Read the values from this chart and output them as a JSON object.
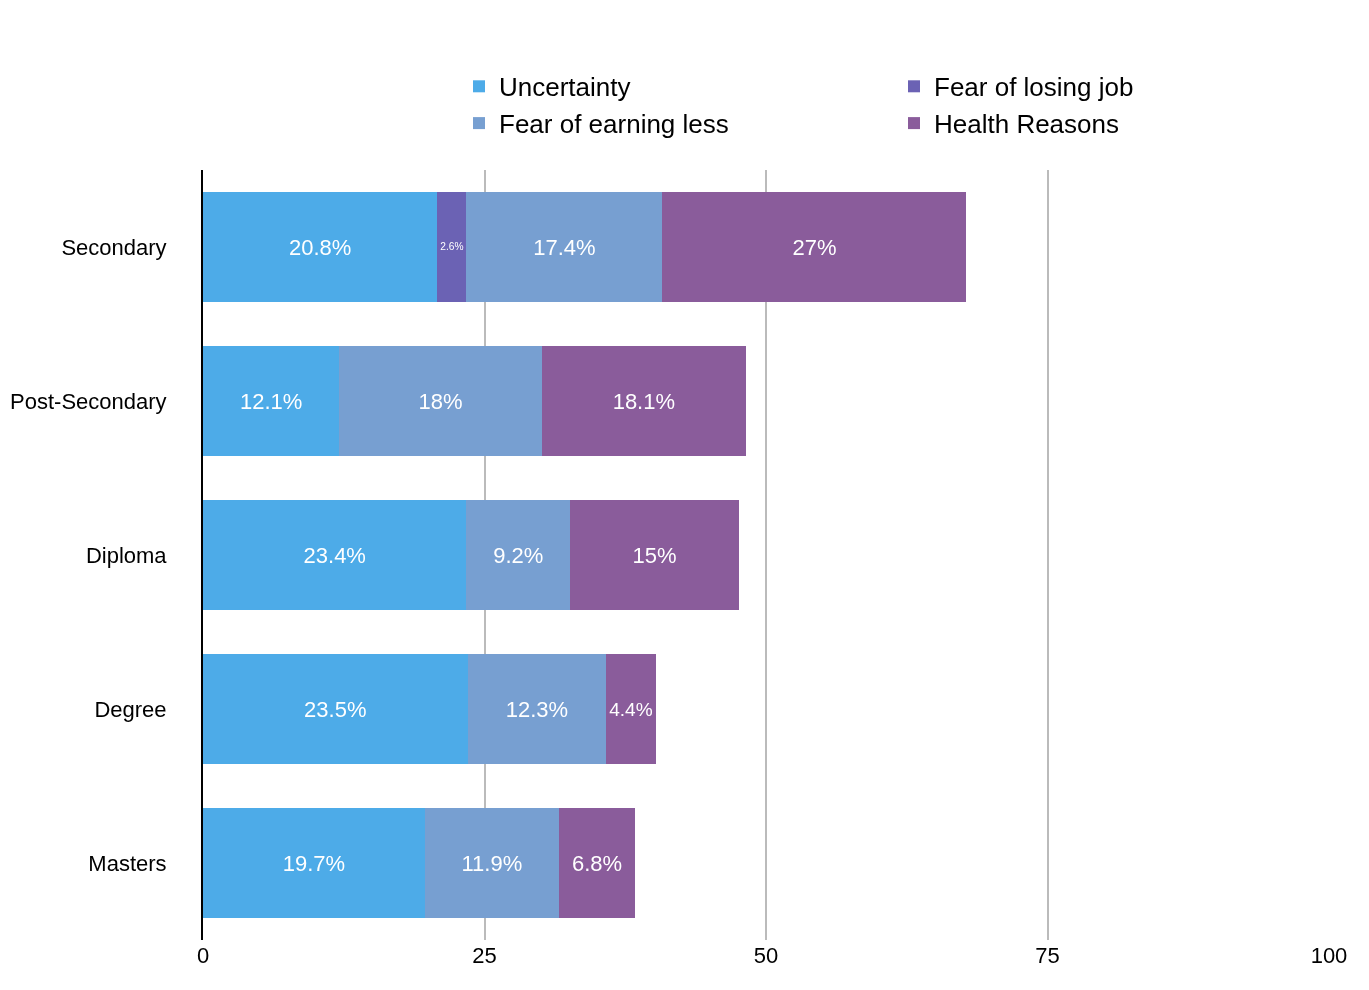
{
  "chart_data": {
    "type": "bar",
    "orientation": "horizontal",
    "stacked": true,
    "categories": [
      "Secondary",
      "Post-Secondary",
      "Diploma",
      "Degree",
      "Masters"
    ],
    "series": [
      {
        "name": "Uncertainty",
        "color": "#4dabe8",
        "values": [
          20.8,
          12.1,
          23.4,
          23.5,
          19.7
        ],
        "value_labels": [
          "20.8%",
          "12.1%",
          "23.4%",
          "23.5%",
          "19.7%"
        ]
      },
      {
        "name": "Fear of losing job",
        "color": "#6b62b4",
        "values": [
          2.6,
          null,
          null,
          null,
          null
        ],
        "value_labels": [
          "2.6%",
          null,
          null,
          null,
          null
        ]
      },
      {
        "name": "Fear of earning less",
        "color": "#779fd1",
        "values": [
          17.4,
          18,
          9.2,
          12.3,
          11.9
        ],
        "value_labels": [
          "17.4%",
          "18%",
          "9.2%",
          "12.3%",
          "11.9%"
        ]
      },
      {
        "name": "Health Reasons",
        "color": "#8a5c9b",
        "values": [
          27,
          18.1,
          15,
          4.4,
          6.8
        ],
        "value_labels": [
          "27%",
          "18.1%",
          "15%",
          "4.4%",
          "6.8%"
        ]
      }
    ],
    "xlim": [
      0,
      100
    ],
    "xticks": [
      0,
      25,
      50,
      75,
      100
    ],
    "grid": "x",
    "legend": "top right"
  }
}
